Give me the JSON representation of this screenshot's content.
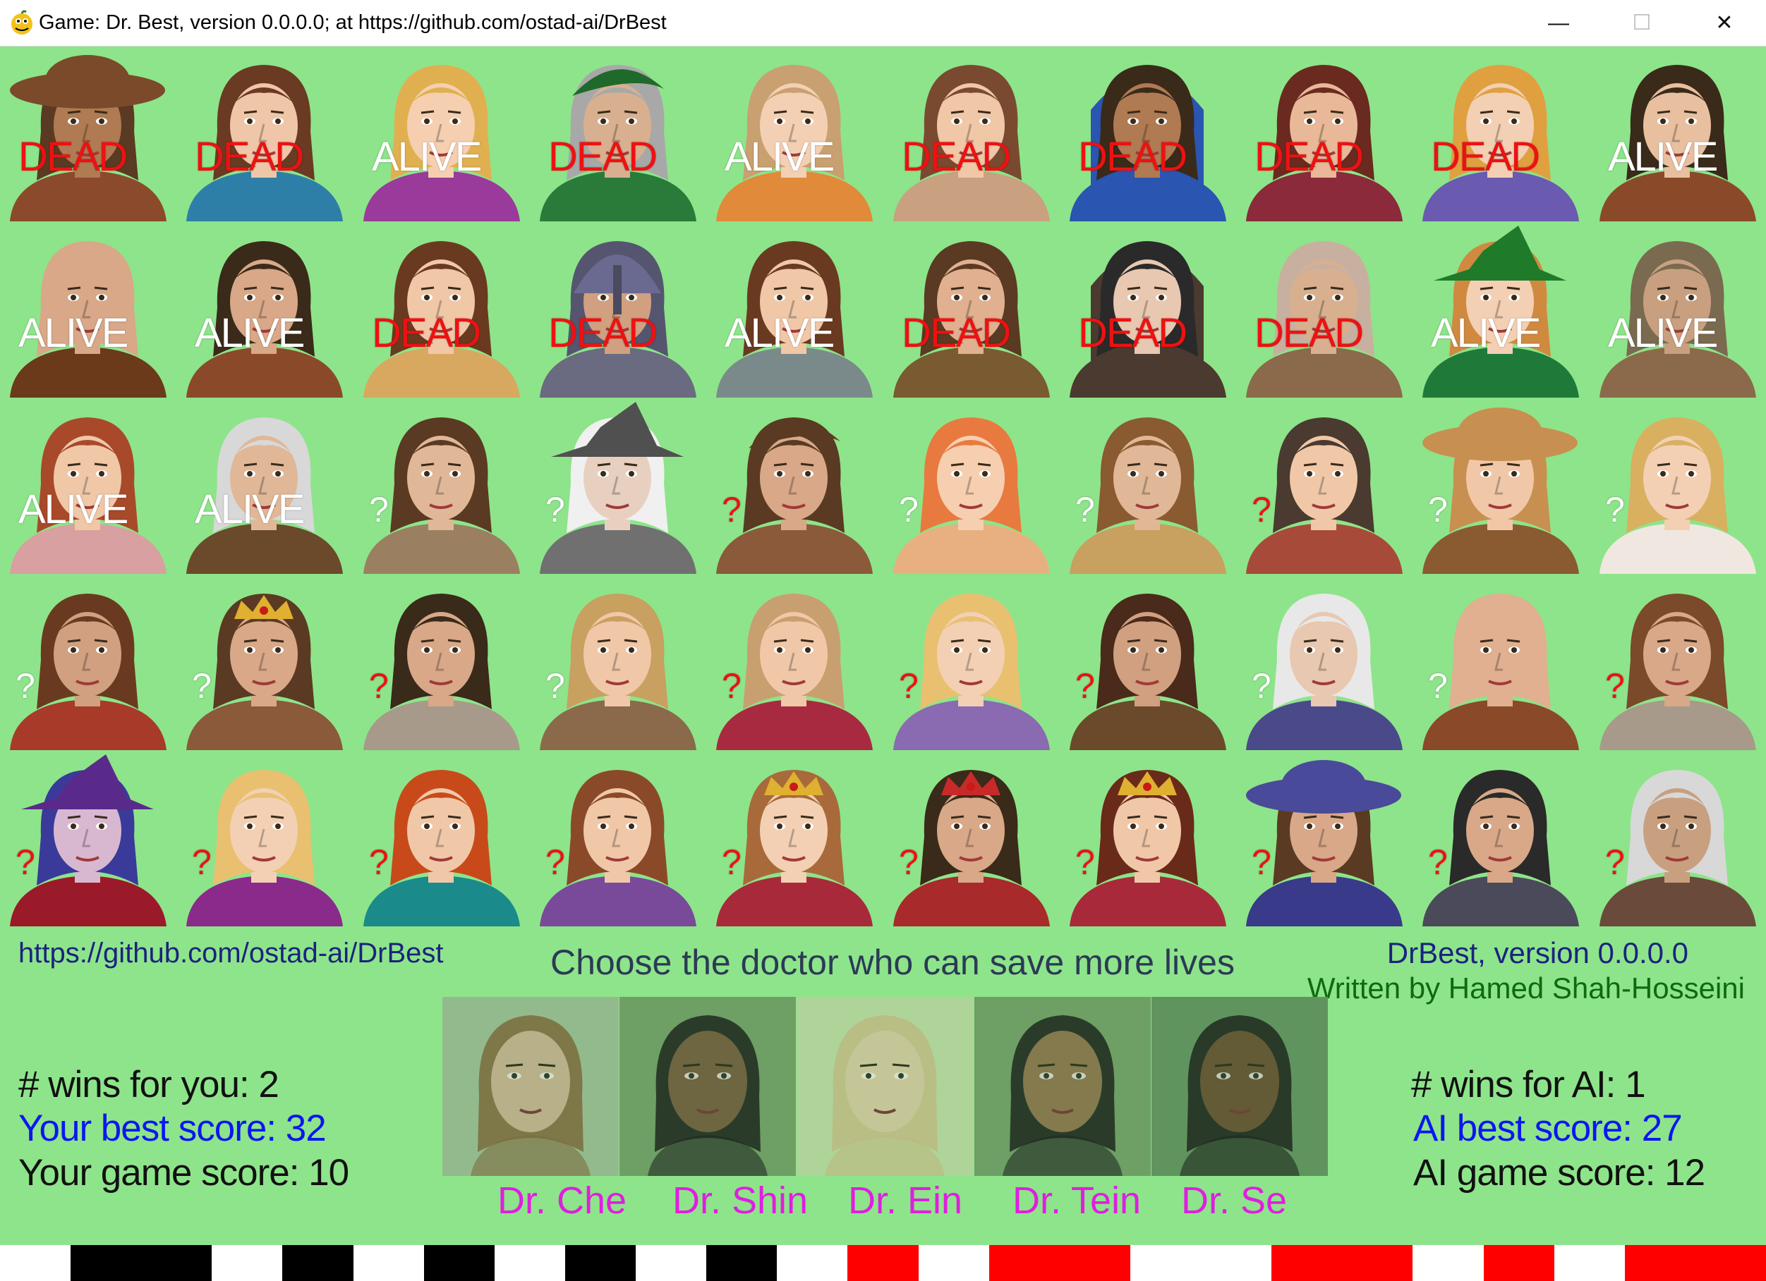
{
  "window": {
    "title": "Game: Dr. Best, version 0.0.0.0; at https://github.com/ostad-ai/DrBest",
    "minimize_glyph": "—",
    "maximize_glyph": "☐",
    "close_glyph": "✕"
  },
  "colors": {
    "background": "#8ee48a",
    "dead": "#ee1111",
    "alive": "#ffffff",
    "doctor_label": "#e01ee0",
    "best_score": "#0c16f0",
    "bar_black": "#000000",
    "bar_red": "#ff0000"
  },
  "grid": {
    "rows": 5,
    "cols": 10,
    "patients": [
      {
        "status": "DEAD",
        "skin": "#b07a52",
        "hair": "#5a3a22",
        "outfit": "#8b4a2b",
        "hat": "brim",
        "hatColor": "#7a4a2a"
      },
      {
        "status": "DEAD",
        "skin": "#f0c6a8",
        "hair": "#6b3a22",
        "outfit": "#2e7fa8",
        "hat": "none"
      },
      {
        "status": "ALIVE",
        "skin": "#f5cfb0",
        "hair": "#e0b050",
        "outfit": "#9a3a9a",
        "hat": "none"
      },
      {
        "status": "DEAD",
        "skin": "#d8b090",
        "hair": "#a8a8a8",
        "outfit": "#2a7a3a",
        "hat": "cap",
        "hatColor": "#1f6a2a"
      },
      {
        "status": "ALIVE",
        "skin": "#f3d0b4",
        "hair": "#c9a070",
        "outfit": "#e08a3a",
        "hat": "none"
      },
      {
        "status": "DEAD",
        "skin": "#f0c8a8",
        "hair": "#7a4a30",
        "outfit": "#c9a080",
        "hat": "none"
      },
      {
        "status": "DEAD",
        "skin": "#b07a52",
        "hair": "#3a2a1a",
        "outfit": "#2a55b0",
        "hat": "hood",
        "hatColor": "#2a55b0"
      },
      {
        "status": "DEAD",
        "skin": "#e8b898",
        "hair": "#6a2a20",
        "outfit": "#8a2a3a",
        "hat": "none"
      },
      {
        "status": "DEAD",
        "skin": "#f3d0b4",
        "hair": "#e0a040",
        "outfit": "#6a5ab0",
        "hat": "none"
      },
      {
        "status": "ALIVE",
        "skin": "#e8c0a0",
        "hair": "#3a2a1a",
        "outfit": "#8a4a2a",
        "hat": "none"
      },
      {
        "status": "ALIVE",
        "skin": "#d8a888",
        "hair": "#d8a888",
        "outfit": "#6a3a1a",
        "hat": "none"
      },
      {
        "status": "ALIVE",
        "skin": "#d8a888",
        "hair": "#3a2a1a",
        "outfit": "#8a4a2a",
        "hat": "none"
      },
      {
        "status": "DEAD",
        "skin": "#f0c8a8",
        "hair": "#6a3a20",
        "outfit": "#d8a860",
        "hat": "none"
      },
      {
        "status": "DEAD",
        "skin": "#d0a080",
        "hair": "#555570",
        "outfit": "#6a6a80",
        "hat": "helmet",
        "hatColor": "#6a6a90"
      },
      {
        "status": "ALIVE",
        "skin": "#f0c8a8",
        "hair": "#6a3a20",
        "outfit": "#7a8a8a",
        "hat": "none"
      },
      {
        "status": "DEAD",
        "skin": "#e0b090",
        "hair": "#5a3a22",
        "outfit": "#7a5a30",
        "hat": "none"
      },
      {
        "status": "DEAD",
        "skin": "#e8c8b0",
        "hair": "#2a2a2a",
        "outfit": "#4a3a30",
        "hat": "hood",
        "hatColor": "#4a3a30"
      },
      {
        "status": "DEAD",
        "skin": "#d8b090",
        "hair": "#c8b0a0",
        "outfit": "#8a6a4a",
        "hat": "none"
      },
      {
        "status": "ALIVE",
        "skin": "#f3d0b4",
        "hair": "#d08a40",
        "outfit": "#1f7a3a",
        "hat": "witch",
        "hatColor": "#1f7a2a"
      },
      {
        "status": "ALIVE",
        "skin": "#c8a080",
        "hair": "#7a6a50",
        "outfit": "#8a6a4a",
        "hat": "none"
      },
      {
        "status": "ALIVE",
        "skin": "#f0c8a8",
        "hair": "#a84a2a",
        "outfit": "#d8a0a0",
        "hat": "none"
      },
      {
        "status": "ALIVE",
        "skin": "#e0b898",
        "hair": "#d8d8d8",
        "outfit": "#6a4a2a",
        "hat": "none"
      },
      {
        "status": "?",
        "skin": "#e0b898",
        "hair": "#5a3a22",
        "outfit": "#9a8060",
        "hat": "none",
        "light": true
      },
      {
        "status": "?",
        "skin": "#e8d0c0",
        "hair": "#f0f0f0",
        "outfit": "#707070",
        "hat": "witch",
        "hatColor": "#505050",
        "light": true
      },
      {
        "status": "?",
        "skin": "#d8a888",
        "hair": "#5a3a22",
        "outfit": "#8a5a3a",
        "hat": "cap",
        "hatColor": "#5a3a22"
      },
      {
        "status": "?",
        "skin": "#f5cfb0",
        "hair": "#e87a40",
        "outfit": "#e8b080",
        "hat": "none",
        "light": true
      },
      {
        "status": "?",
        "skin": "#e0b898",
        "hair": "#8a5a30",
        "outfit": "#c8a060",
        "hat": "none",
        "light": true
      },
      {
        "status": "?",
        "skin": "#f0c8a8",
        "hair": "#4a3a30",
        "outfit": "#a84a3a",
        "hat": "none"
      },
      {
        "status": "?",
        "skin": "#f0c8a8",
        "hair": "#c89050",
        "outfit": "#8a5a30",
        "hat": "brim",
        "hatColor": "#c89050",
        "light": true
      },
      {
        "status": "?",
        "skin": "#f3d0b4",
        "hair": "#d8b060",
        "outfit": "#f0e8e0",
        "hat": "none",
        "light": true
      },
      {
        "status": "?",
        "skin": "#d0a080",
        "hair": "#6a3a20",
        "outfit": "#a83a2a",
        "hat": "none",
        "light": true
      },
      {
        "status": "?",
        "skin": "#d8a888",
        "hair": "#5a3a22",
        "outfit": "#8a5a3a",
        "hat": "crown",
        "hatColor": "#e0b030",
        "light": true
      },
      {
        "status": "?",
        "skin": "#d8a888",
        "hair": "#3a2a1a",
        "outfit": "#a89a8a",
        "hat": "none"
      },
      {
        "status": "?",
        "skin": "#f0c8a8",
        "hair": "#c8a060",
        "outfit": "#8a6a4a",
        "hat": "none",
        "light": true
      },
      {
        "status": "?",
        "skin": "#f0c8a8",
        "hair": "#c8a070",
        "outfit": "#a82a40",
        "hat": "none"
      },
      {
        "status": "?",
        "skin": "#f3d0b4",
        "hair": "#e8c070",
        "outfit": "#8a6ab0",
        "hat": "none"
      },
      {
        "status": "?",
        "skin": "#d0a080",
        "hair": "#4a2a1a",
        "outfit": "#6a4a2a",
        "hat": "none"
      },
      {
        "status": "?",
        "skin": "#e8c8b0",
        "hair": "#e8e8e8",
        "outfit": "#4a4a8a",
        "hat": "none",
        "light": true
      },
      {
        "status": "?",
        "skin": "#e0b090",
        "hair": "#e0b090",
        "outfit": "#8a4a2a",
        "hat": "none",
        "light": true
      },
      {
        "status": "?",
        "skin": "#d8a888",
        "hair": "#7a4a2a",
        "outfit": "#a89a8a",
        "hat": "none"
      },
      {
        "status": "?",
        "skin": "#d8b8d0",
        "hair": "#3a3a9a",
        "outfit": "#9a1a2a",
        "hat": "witch",
        "hatColor": "#5a2a8a"
      },
      {
        "status": "?",
        "skin": "#f3d0b4",
        "hair": "#e8c070",
        "outfit": "#8a2a8a",
        "hat": "none"
      },
      {
        "status": "?",
        "skin": "#f0c8a8",
        "hair": "#c84a1a",
        "outfit": "#1a8a8a",
        "hat": "none"
      },
      {
        "status": "?",
        "skin": "#f0c8a8",
        "hair": "#8a4a2a",
        "outfit": "#7a4a9a",
        "hat": "none"
      },
      {
        "status": "?",
        "skin": "#f3d0b4",
        "hair": "#a86a3a",
        "outfit": "#a82a3a",
        "hat": "crown",
        "hatColor": "#e0b030"
      },
      {
        "status": "?",
        "skin": "#d8a888",
        "hair": "#3a2a1a",
        "outfit": "#a82a2a",
        "hat": "crown",
        "hatColor": "#c82a2a"
      },
      {
        "status": "?",
        "skin": "#f0c8a8",
        "hair": "#6a2a1a",
        "outfit": "#a82a3a",
        "hat": "crown",
        "hatColor": "#e0b030"
      },
      {
        "status": "?",
        "skin": "#d8a888",
        "hair": "#5a3a22",
        "outfit": "#3a3a8a",
        "hat": "brim",
        "hatColor": "#4a4a9a"
      },
      {
        "status": "?",
        "skin": "#d8a888",
        "hair": "#2a2a2a",
        "outfit": "#4a4a5a",
        "hat": "none"
      },
      {
        "status": "?",
        "skin": "#c8a080",
        "hair": "#d8d8d8",
        "outfit": "#6a4a3a",
        "hat": "none"
      }
    ]
  },
  "info": {
    "url": "https://github.com/ostad-ai/DrBest",
    "prompt": "Choose the doctor who can save more lives",
    "version": "DrBest, version 0.0.0.0",
    "author": "Written by Hamed Shah-Hosseini"
  },
  "player": {
    "wins": "# wins for you: 2",
    "best": "Your best score: 32",
    "game": "Your game score: 10"
  },
  "ai": {
    "wins": "# wins for AI: 1",
    "best": "AI best score: 27",
    "game": "AI game score: 12"
  },
  "doctors": [
    {
      "name": "Dr. Che",
      "skin": "#e0c8a8",
      "hair": "#8a6a40",
      "tint": "#a8c8a0"
    },
    {
      "name": "Dr. Shin",
      "skin": "#8a6a4a",
      "hair": "#1a1a1a",
      "tint": "#7aa870"
    },
    {
      "name": "Dr. Ein",
      "skin": "#e8d8b0",
      "hair": "#d8c890",
      "tint": "#c8e8b0"
    },
    {
      "name": "Dr. Tein",
      "skin": "#a8885a",
      "hair": "#1a1a1a",
      "tint": "#7aa870"
    },
    {
      "name": "Dr. Se",
      "skin": "#7a5a3a",
      "hair": "#1a1a1a",
      "tint": "#6a9a68"
    }
  ],
  "history_bar": [
    "W",
    "K",
    "K",
    "W",
    "K",
    "W",
    "K",
    "W",
    "K",
    "W",
    "K",
    "W",
    "R",
    "W",
    "R",
    "R",
    "W",
    "W",
    "R",
    "R",
    "W",
    "R",
    "W",
    "R",
    "R"
  ]
}
